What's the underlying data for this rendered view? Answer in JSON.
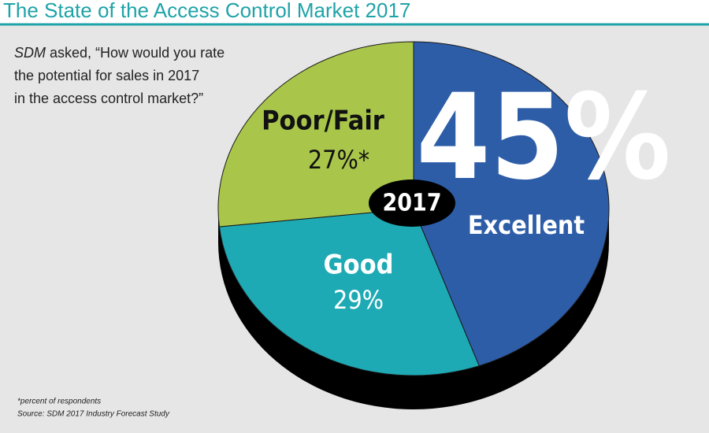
{
  "chart_data": {
    "type": "pie",
    "title": "The State of the Access Control Market 2017",
    "question": {
      "emphasis": "SDM",
      "lines": [
        "asked, “How would you rate",
        "the potential for sales in 2017",
        "in the access control market?”"
      ]
    },
    "center_label": "2017",
    "categories": [
      "Excellent",
      "Good",
      "Poor/Fair"
    ],
    "values": [
      45,
      29,
      27
    ],
    "value_labels": [
      "45%",
      "29%",
      "27%*"
    ],
    "colors": [
      "#2e5da8",
      "#1eaab4",
      "#a9c64b"
    ],
    "footnotes": [
      "*percent of respondents",
      "Source: SDM 2017 Industry Forecast Study"
    ]
  }
}
